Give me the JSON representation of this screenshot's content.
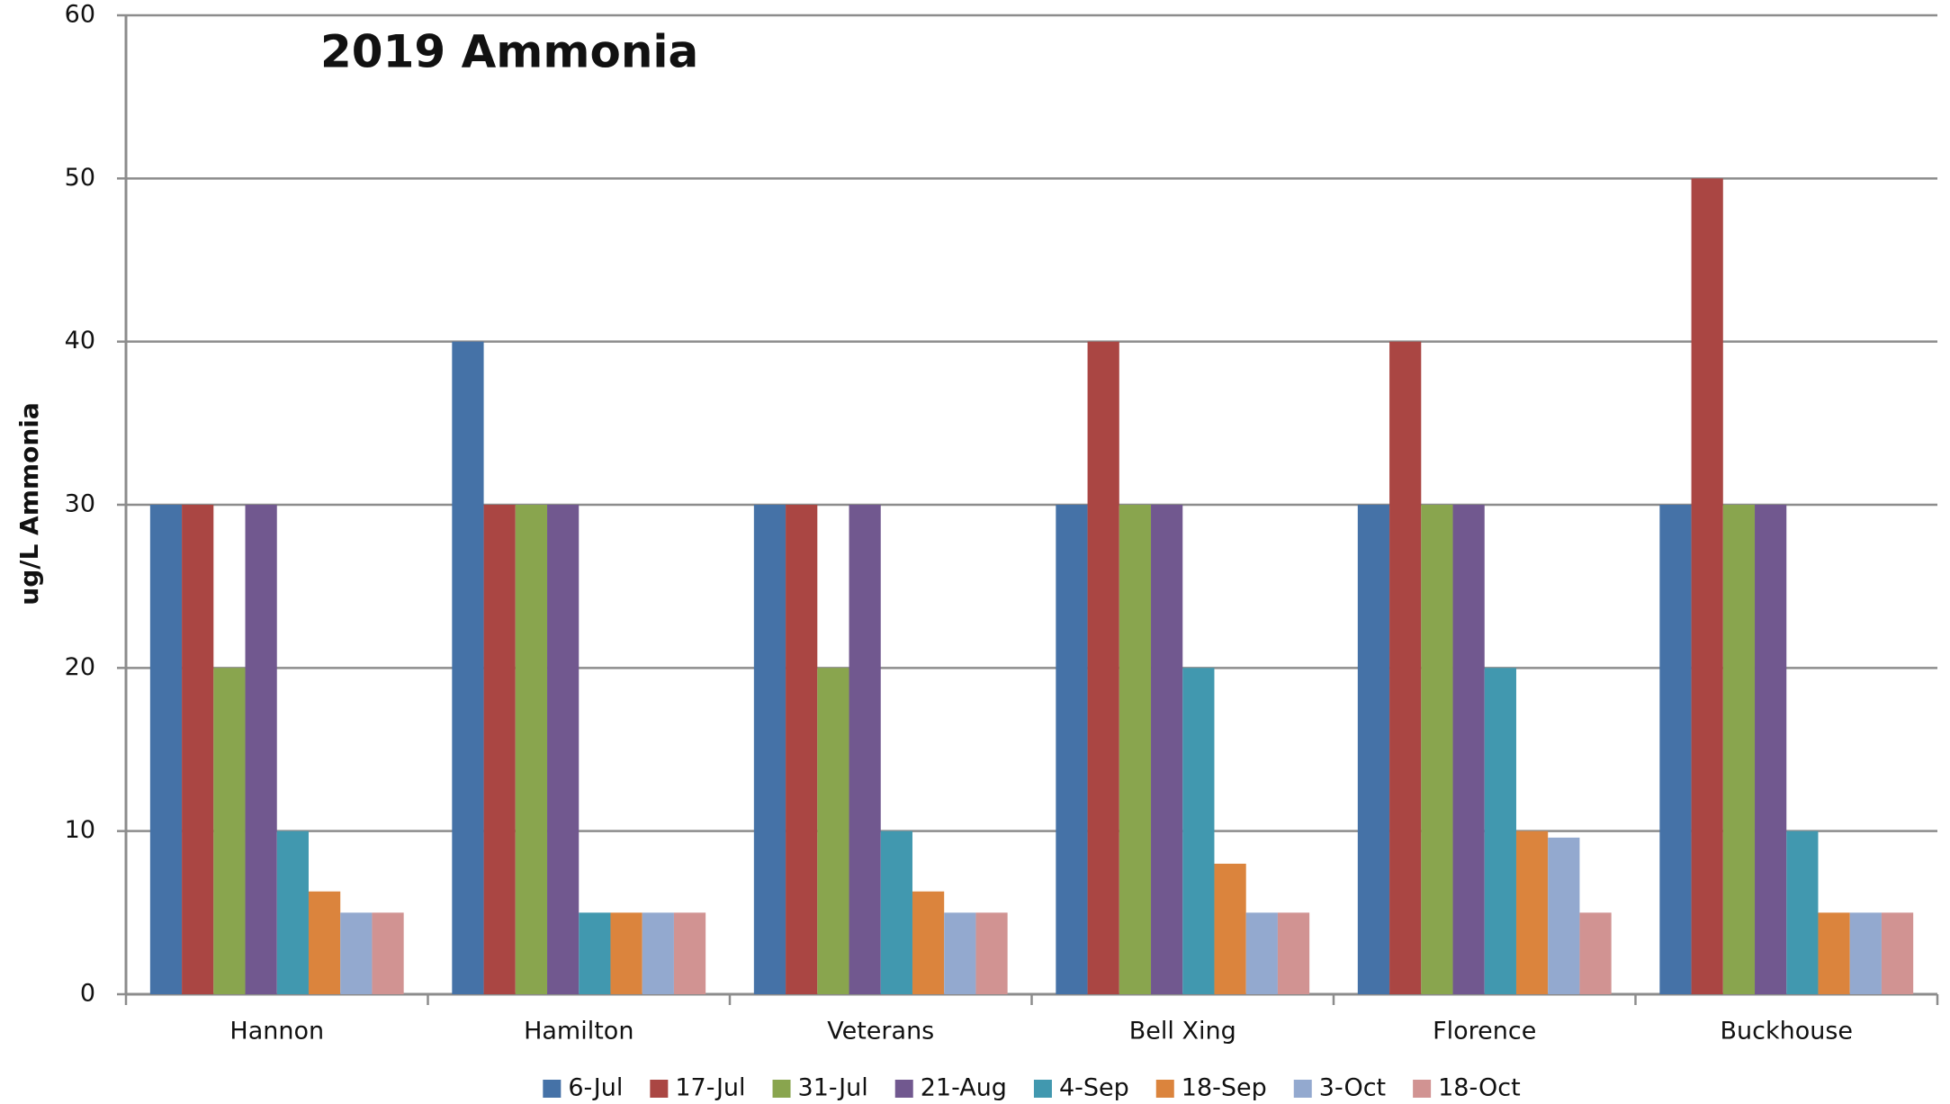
{
  "chart_data": {
    "type": "bar",
    "title": "2019 Ammonia",
    "y_label": "ug/L  Ammonia",
    "categories": [
      "Hannon",
      "Hamilton",
      "Veterans",
      "Bell Xing",
      "Florence",
      "Buckhouse"
    ],
    "series": [
      {
        "name": "6-Jul",
        "color": "#4572a7",
        "values": [
          30,
          40,
          30,
          30,
          30,
          30
        ]
      },
      {
        "name": "17-Jul",
        "color": "#aa4643",
        "values": [
          30,
          30,
          30,
          40,
          40,
          50
        ]
      },
      {
        "name": "31-Jul",
        "color": "#89a54e",
        "values": [
          20,
          30,
          20,
          30,
          30,
          30
        ]
      },
      {
        "name": "21-Aug",
        "color": "#71588f",
        "values": [
          30,
          30,
          30,
          30,
          30,
          30
        ]
      },
      {
        "name": "4-Sep",
        "color": "#4198af",
        "values": [
          10,
          5,
          10,
          20,
          20,
          10
        ]
      },
      {
        "name": "18-Sep",
        "color": "#db843d",
        "values": [
          6.3,
          5,
          6.3,
          8,
          10,
          5
        ]
      },
      {
        "name": "3-Oct",
        "color": "#93a9cf",
        "values": [
          5,
          5,
          5,
          5,
          9.6,
          5
        ]
      },
      {
        "name": "18-Oct",
        "color": "#d19392",
        "values": [
          5,
          5,
          5,
          5,
          5,
          5
        ]
      }
    ],
    "ylim": [
      0,
      60
    ],
    "yticks": [
      0,
      10,
      20,
      30,
      40,
      50,
      60
    ],
    "grid": true,
    "legend": "bottom"
  }
}
